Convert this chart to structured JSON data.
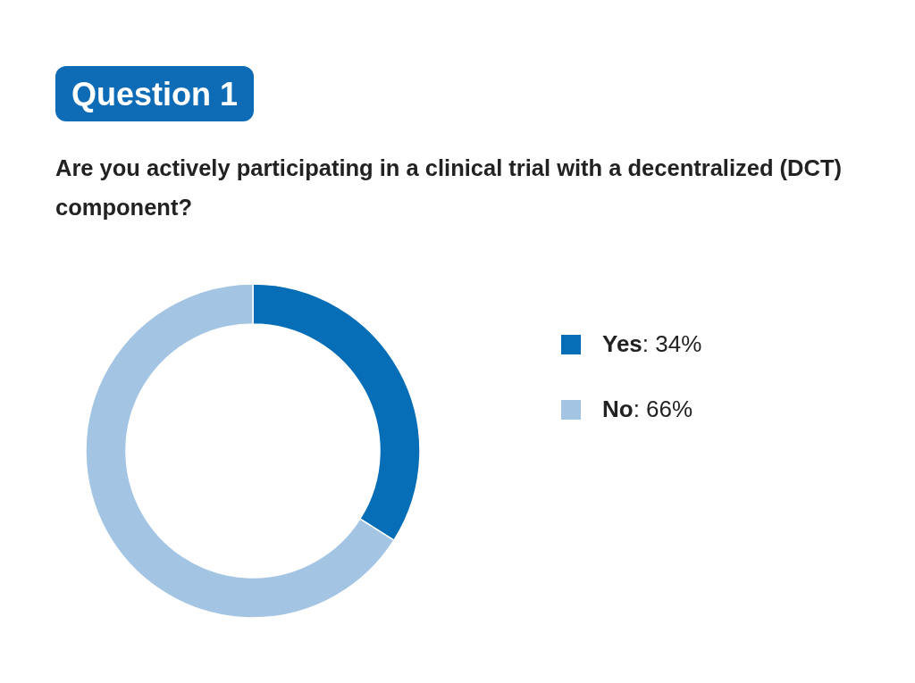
{
  "chart_data": {
    "type": "donut",
    "title": "Question 1",
    "subtitle": "Are you actively participating in a clinical trial with a decentralized (DCT) component?",
    "categories": [
      "Yes",
      "No"
    ],
    "values": [
      34,
      66
    ],
    "colors": [
      "#066db7",
      "#a3c5e3"
    ],
    "value_labels": [
      ": 34%",
      ": 66%"
    ],
    "legend": "right"
  }
}
